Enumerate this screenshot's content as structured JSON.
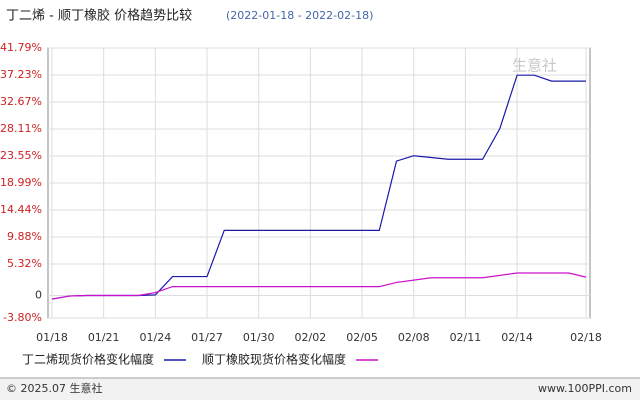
{
  "chart_data": {
    "type": "line",
    "title": "丁二烯 - 顺丁橡胶 价格趋势比较",
    "subtitle": "(2022-01-18 - 2022-02-18)",
    "categories": [
      "01/18",
      null,
      null,
      "01/21",
      null,
      null,
      "01/24",
      null,
      null,
      "01/27",
      null,
      null,
      "01/30",
      null,
      null,
      "02/02",
      null,
      null,
      "02/05",
      null,
      null,
      "02/08",
      null,
      null,
      "02/11",
      null,
      null,
      "02/14",
      null,
      null,
      null,
      "02/18"
    ],
    "series": [
      {
        "name": "丁二烯现货价格变化幅度",
        "color": "#1a1aa8",
        "values": [
          -0.6,
          -0.1,
          0,
          0,
          0,
          0,
          0.1,
          3.2,
          3.2,
          3.2,
          11.0,
          11.0,
          11.0,
          11.0,
          11.0,
          11.0,
          11.0,
          11.0,
          11.0,
          11.0,
          22.7,
          23.6,
          23.3,
          23.0,
          23.0,
          23.0,
          28.2,
          37.2,
          37.2,
          36.2,
          36.2,
          36.2
        ]
      },
      {
        "name": "顺丁橡胶现货价格变化幅度",
        "color": "#cc11cc",
        "values": [
          -0.6,
          -0.1,
          0,
          0,
          0,
          0,
          0.5,
          1.5,
          1.5,
          1.5,
          1.5,
          1.5,
          1.5,
          1.5,
          1.5,
          1.5,
          1.5,
          1.5,
          1.5,
          1.5,
          2.2,
          2.6,
          3.0,
          3.0,
          3.0,
          3.0,
          3.4,
          3.8,
          3.8,
          3.8,
          3.8,
          3.1
        ]
      }
    ],
    "ylim": [
      -3.8,
      41.79
    ],
    "yticks": [
      {
        "value": -3.8,
        "label": "-3.80%"
      },
      0,
      {
        "value": 5.32,
        "label": "5.32%"
      },
      {
        "value": 9.88,
        "label": "9.88%"
      },
      {
        "value": 14.44,
        "label": "14.44%"
      },
      {
        "value": 18.99,
        "label": "18.99%"
      },
      {
        "value": 23.55,
        "label": "23.55%"
      },
      {
        "value": 28.11,
        "label": "28.11%"
      },
      {
        "value": 32.67,
        "label": "32.67%"
      },
      {
        "value": 37.23,
        "label": "37.23%"
      },
      {
        "value": 41.79,
        "label": "41.79%"
      }
    ],
    "grid": true,
    "watermark": "生意社",
    "footer_left": "© 2025.07 生意社",
    "footer_right": "www.100PPI.com"
  }
}
